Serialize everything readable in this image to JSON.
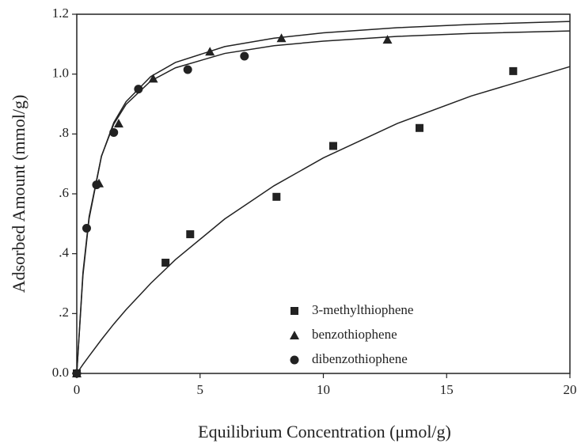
{
  "chart_data": {
    "type": "scatter",
    "xlabel": "Equilibrium Concentration (μmol/g)",
    "ylabel": "Adsorbed Amount (mmol/g)",
    "xlim": [
      0,
      20
    ],
    "ylim": [
      0,
      1.2
    ],
    "xticks": [
      0,
      5,
      10,
      15,
      20
    ],
    "yticks": [
      {
        "value": 0,
        "label": "0.0"
      },
      {
        "value": 0.2,
        "label": ".2"
      },
      {
        "value": 0.4,
        "label": ".4"
      },
      {
        "value": 0.6,
        "label": ".6"
      },
      {
        "value": 0.8,
        "label": ".8"
      },
      {
        "value": 1.0,
        "label": "1.0"
      },
      1.2
    ],
    "legend": "lower right",
    "fit_x": [
      0,
      0.25,
      0.5,
      1,
      1.5,
      2,
      3,
      4,
      6,
      8,
      10,
      13,
      16,
      20
    ],
    "series": [
      {
        "name": "3-methylthiophene",
        "marker": "square",
        "color": "#222222",
        "x": [
          0,
          3.6,
          4.6,
          8.1,
          10.4,
          13.9,
          17.7
        ],
        "values": [
          0,
          0.37,
          0.465,
          0.59,
          0.76,
          0.82,
          1.01
        ],
        "fit": [
          0,
          0.03,
          0.058,
          0.113,
          0.165,
          0.213,
          0.301,
          0.38,
          0.516,
          0.627,
          0.72,
          0.835,
          0.927,
          1.025
        ]
      },
      {
        "name": "benzothiophene",
        "marker": "triangle",
        "color": "#222222",
        "x": [
          0,
          0.9,
          1.7,
          3.1,
          5.4,
          8.3,
          12.6
        ],
        "values": [
          0,
          0.635,
          0.835,
          0.985,
          1.075,
          1.12,
          1.115
        ],
        "fit": [
          0,
          0.328,
          0.517,
          0.725,
          0.838,
          0.908,
          0.992,
          1.039,
          1.092,
          1.12,
          1.138,
          1.155,
          1.166,
          1.176
        ]
      },
      {
        "name": "dibenzothiophene",
        "marker": "circle",
        "color": "#222222",
        "x": [
          0,
          0.4,
          0.8,
          1.5,
          2.5,
          4.5,
          6.8
        ],
        "values": [
          0,
          0.485,
          0.63,
          0.805,
          0.95,
          1.015,
          1.06
        ],
        "fit": [
          0,
          0.337,
          0.524,
          0.726,
          0.833,
          0.899,
          0.977,
          1.021,
          1.069,
          1.095,
          1.11,
          1.126,
          1.136,
          1.144
        ]
      }
    ]
  }
}
